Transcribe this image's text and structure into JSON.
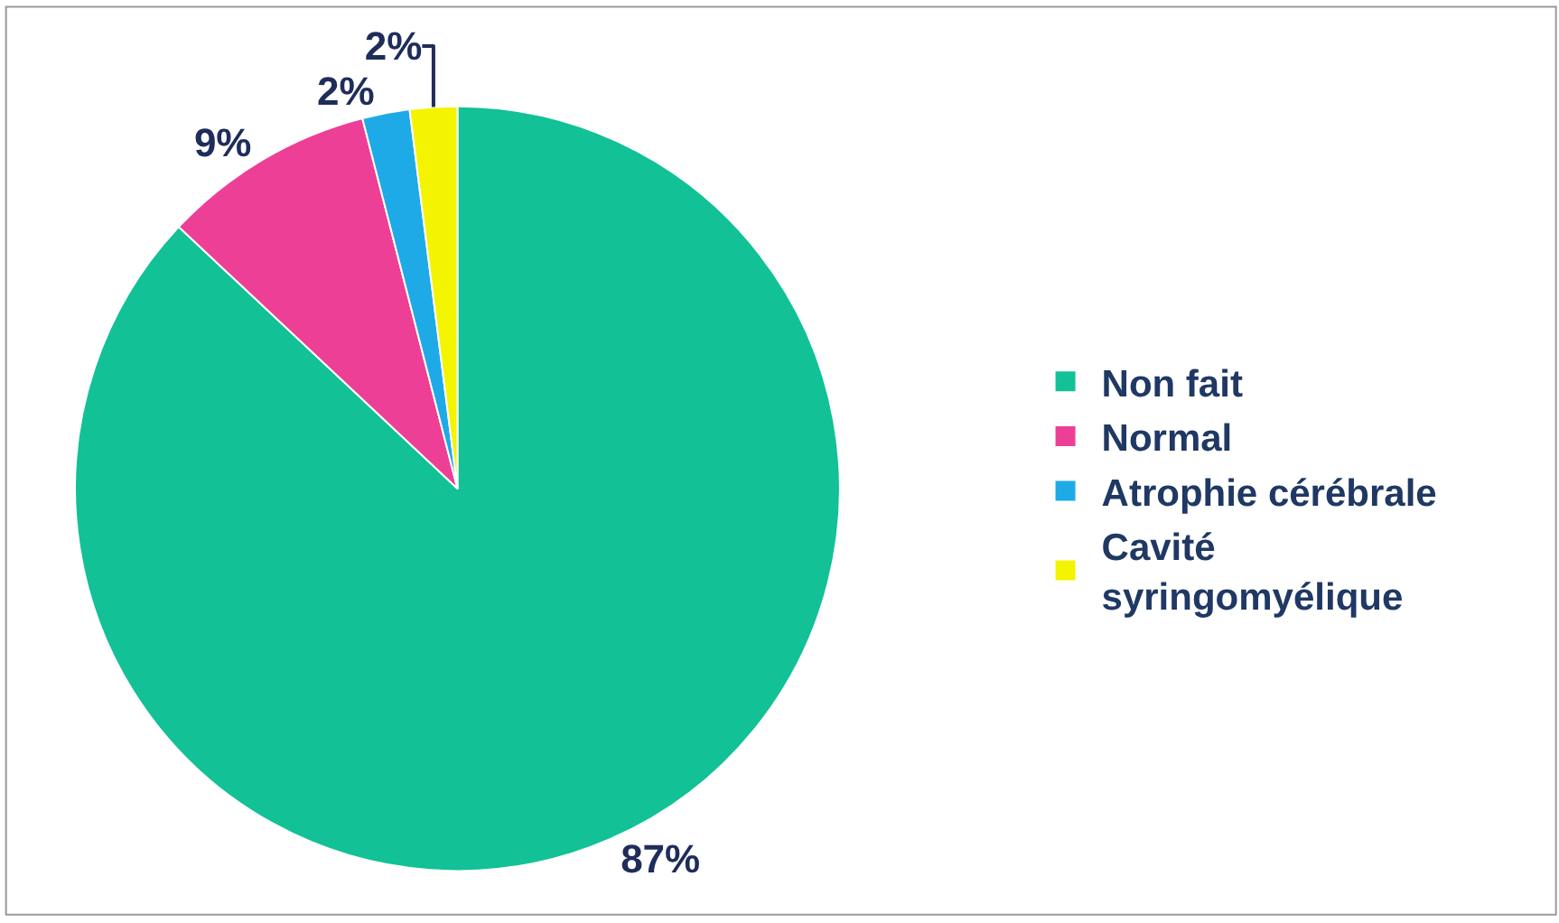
{
  "chart_data": {
    "type": "pie",
    "categories": [
      "Non fait",
      "Normal",
      "Atrophie cérébrale",
      "Cavité syringomyélique"
    ],
    "values": [
      87,
      9,
      2,
      2
    ],
    "colors": [
      "#12c196",
      "#ee3f97",
      "#1eaae6",
      "#f4f400"
    ],
    "value_labels": [
      "87%",
      "9%",
      "2%",
      "2%"
    ],
    "legend": "right"
  }
}
